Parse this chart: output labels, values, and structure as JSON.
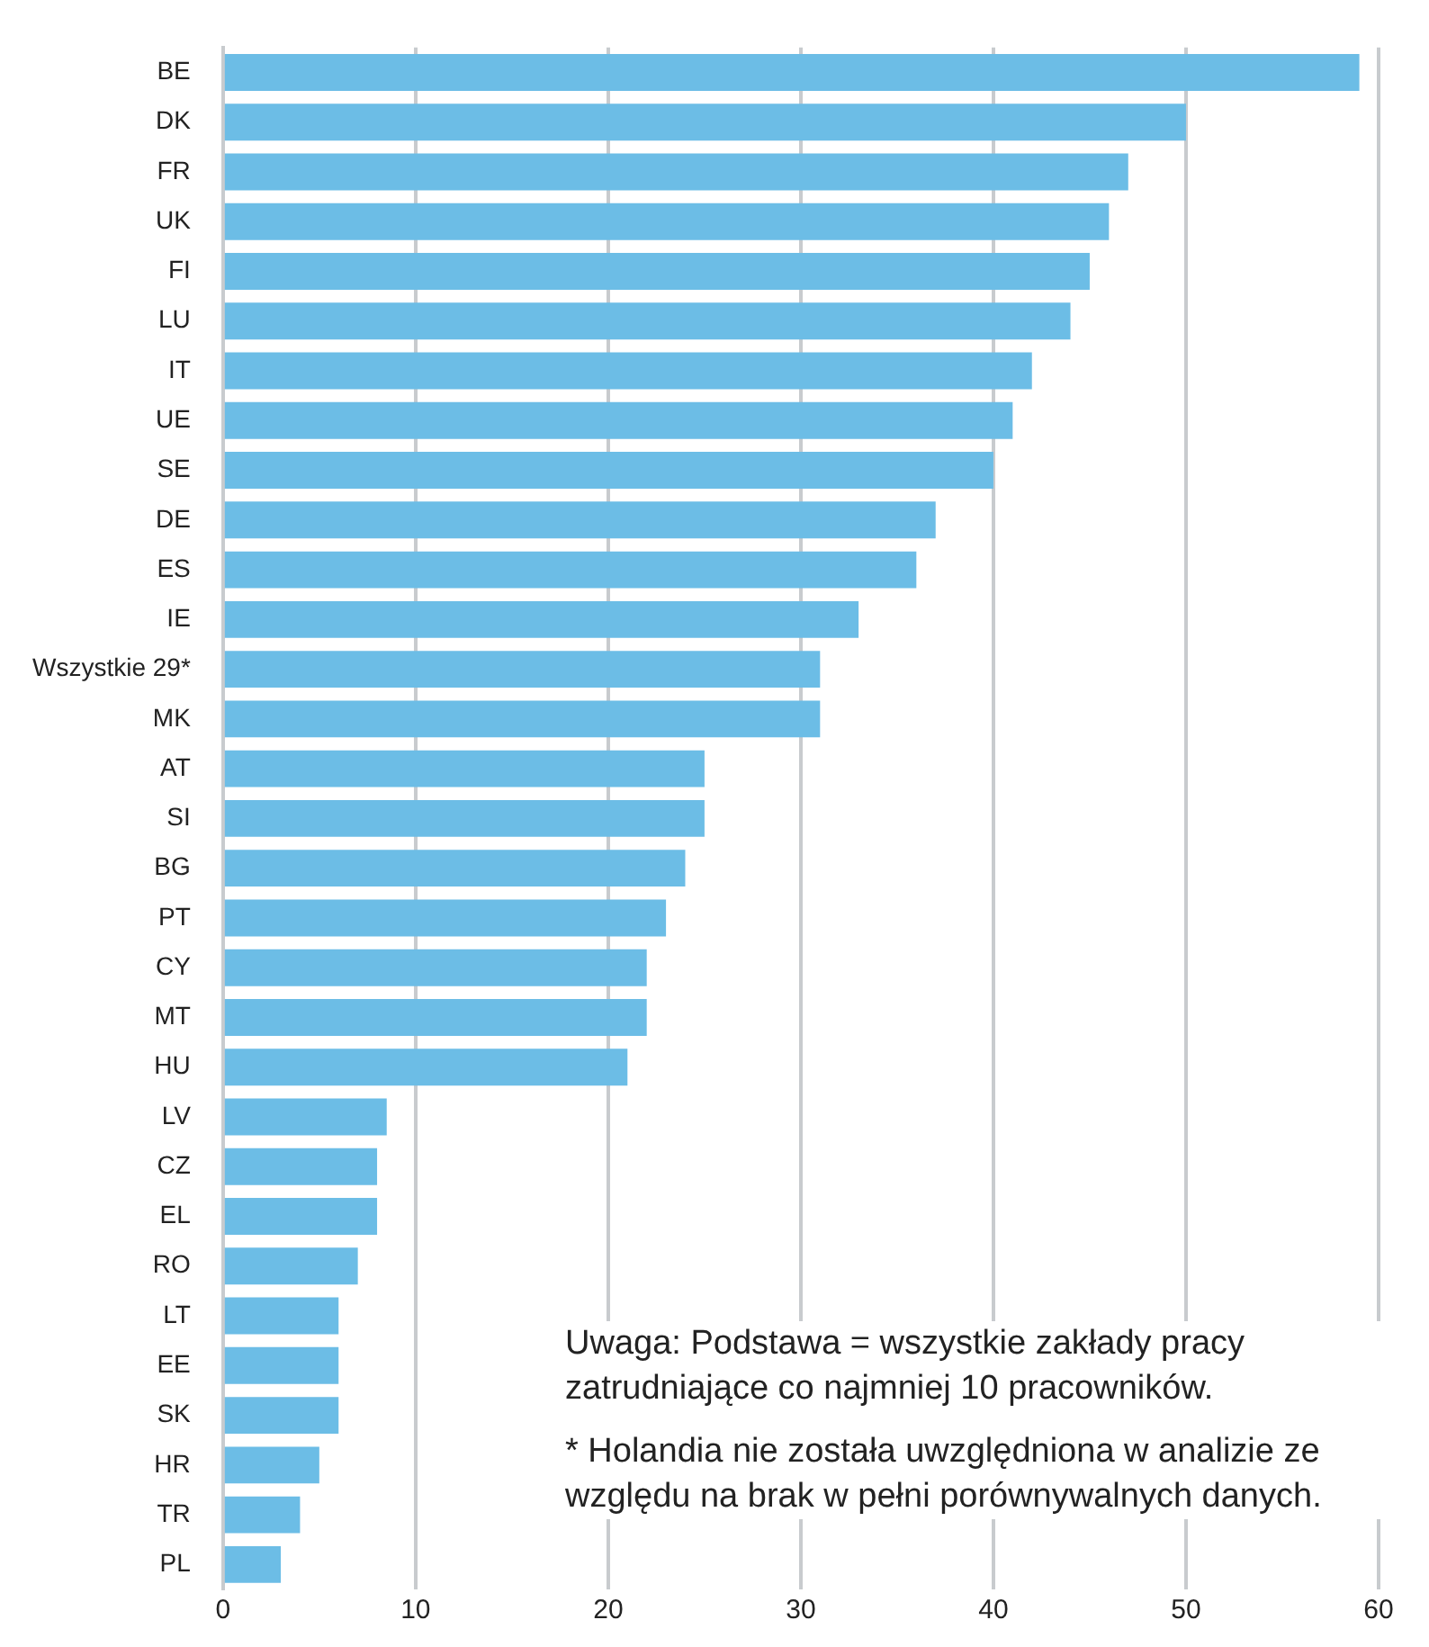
{
  "chart_data": {
    "type": "bar",
    "orientation": "horizontal",
    "categories": [
      "BE",
      "DK",
      "FR",
      "UK",
      "FI",
      "LU",
      "IT",
      "UE",
      "SE",
      "DE",
      "ES",
      "IE",
      "Wszystkie 29*",
      "MK",
      "AT",
      "SI",
      "BG",
      "PT",
      "CY",
      "MT",
      "HU",
      "LV",
      "CZ",
      "EL",
      "RO",
      "LT",
      "EE",
      "SK",
      "HR",
      "TR",
      "PL"
    ],
    "values": [
      59,
      50,
      47,
      46,
      45,
      44,
      42,
      41,
      40,
      37,
      36,
      33,
      31,
      31,
      25,
      25,
      24,
      23,
      22,
      22,
      21,
      8.5,
      8,
      8,
      7,
      6,
      6,
      6,
      5,
      4,
      3
    ],
    "color": "#6cbde6",
    "xlim": [
      0,
      60
    ],
    "xticks": [
      0,
      10,
      20,
      30,
      40,
      50,
      60
    ],
    "grid": "x",
    "annotations": [
      "Uwaga: Podstawa = wszystkie zakłady pracy zatrudniające co najmniej 10 pracowników.",
      "* Holandia nie została uwzględniona w analizie ze względu na brak w pełni porównywalnych danych."
    ]
  }
}
